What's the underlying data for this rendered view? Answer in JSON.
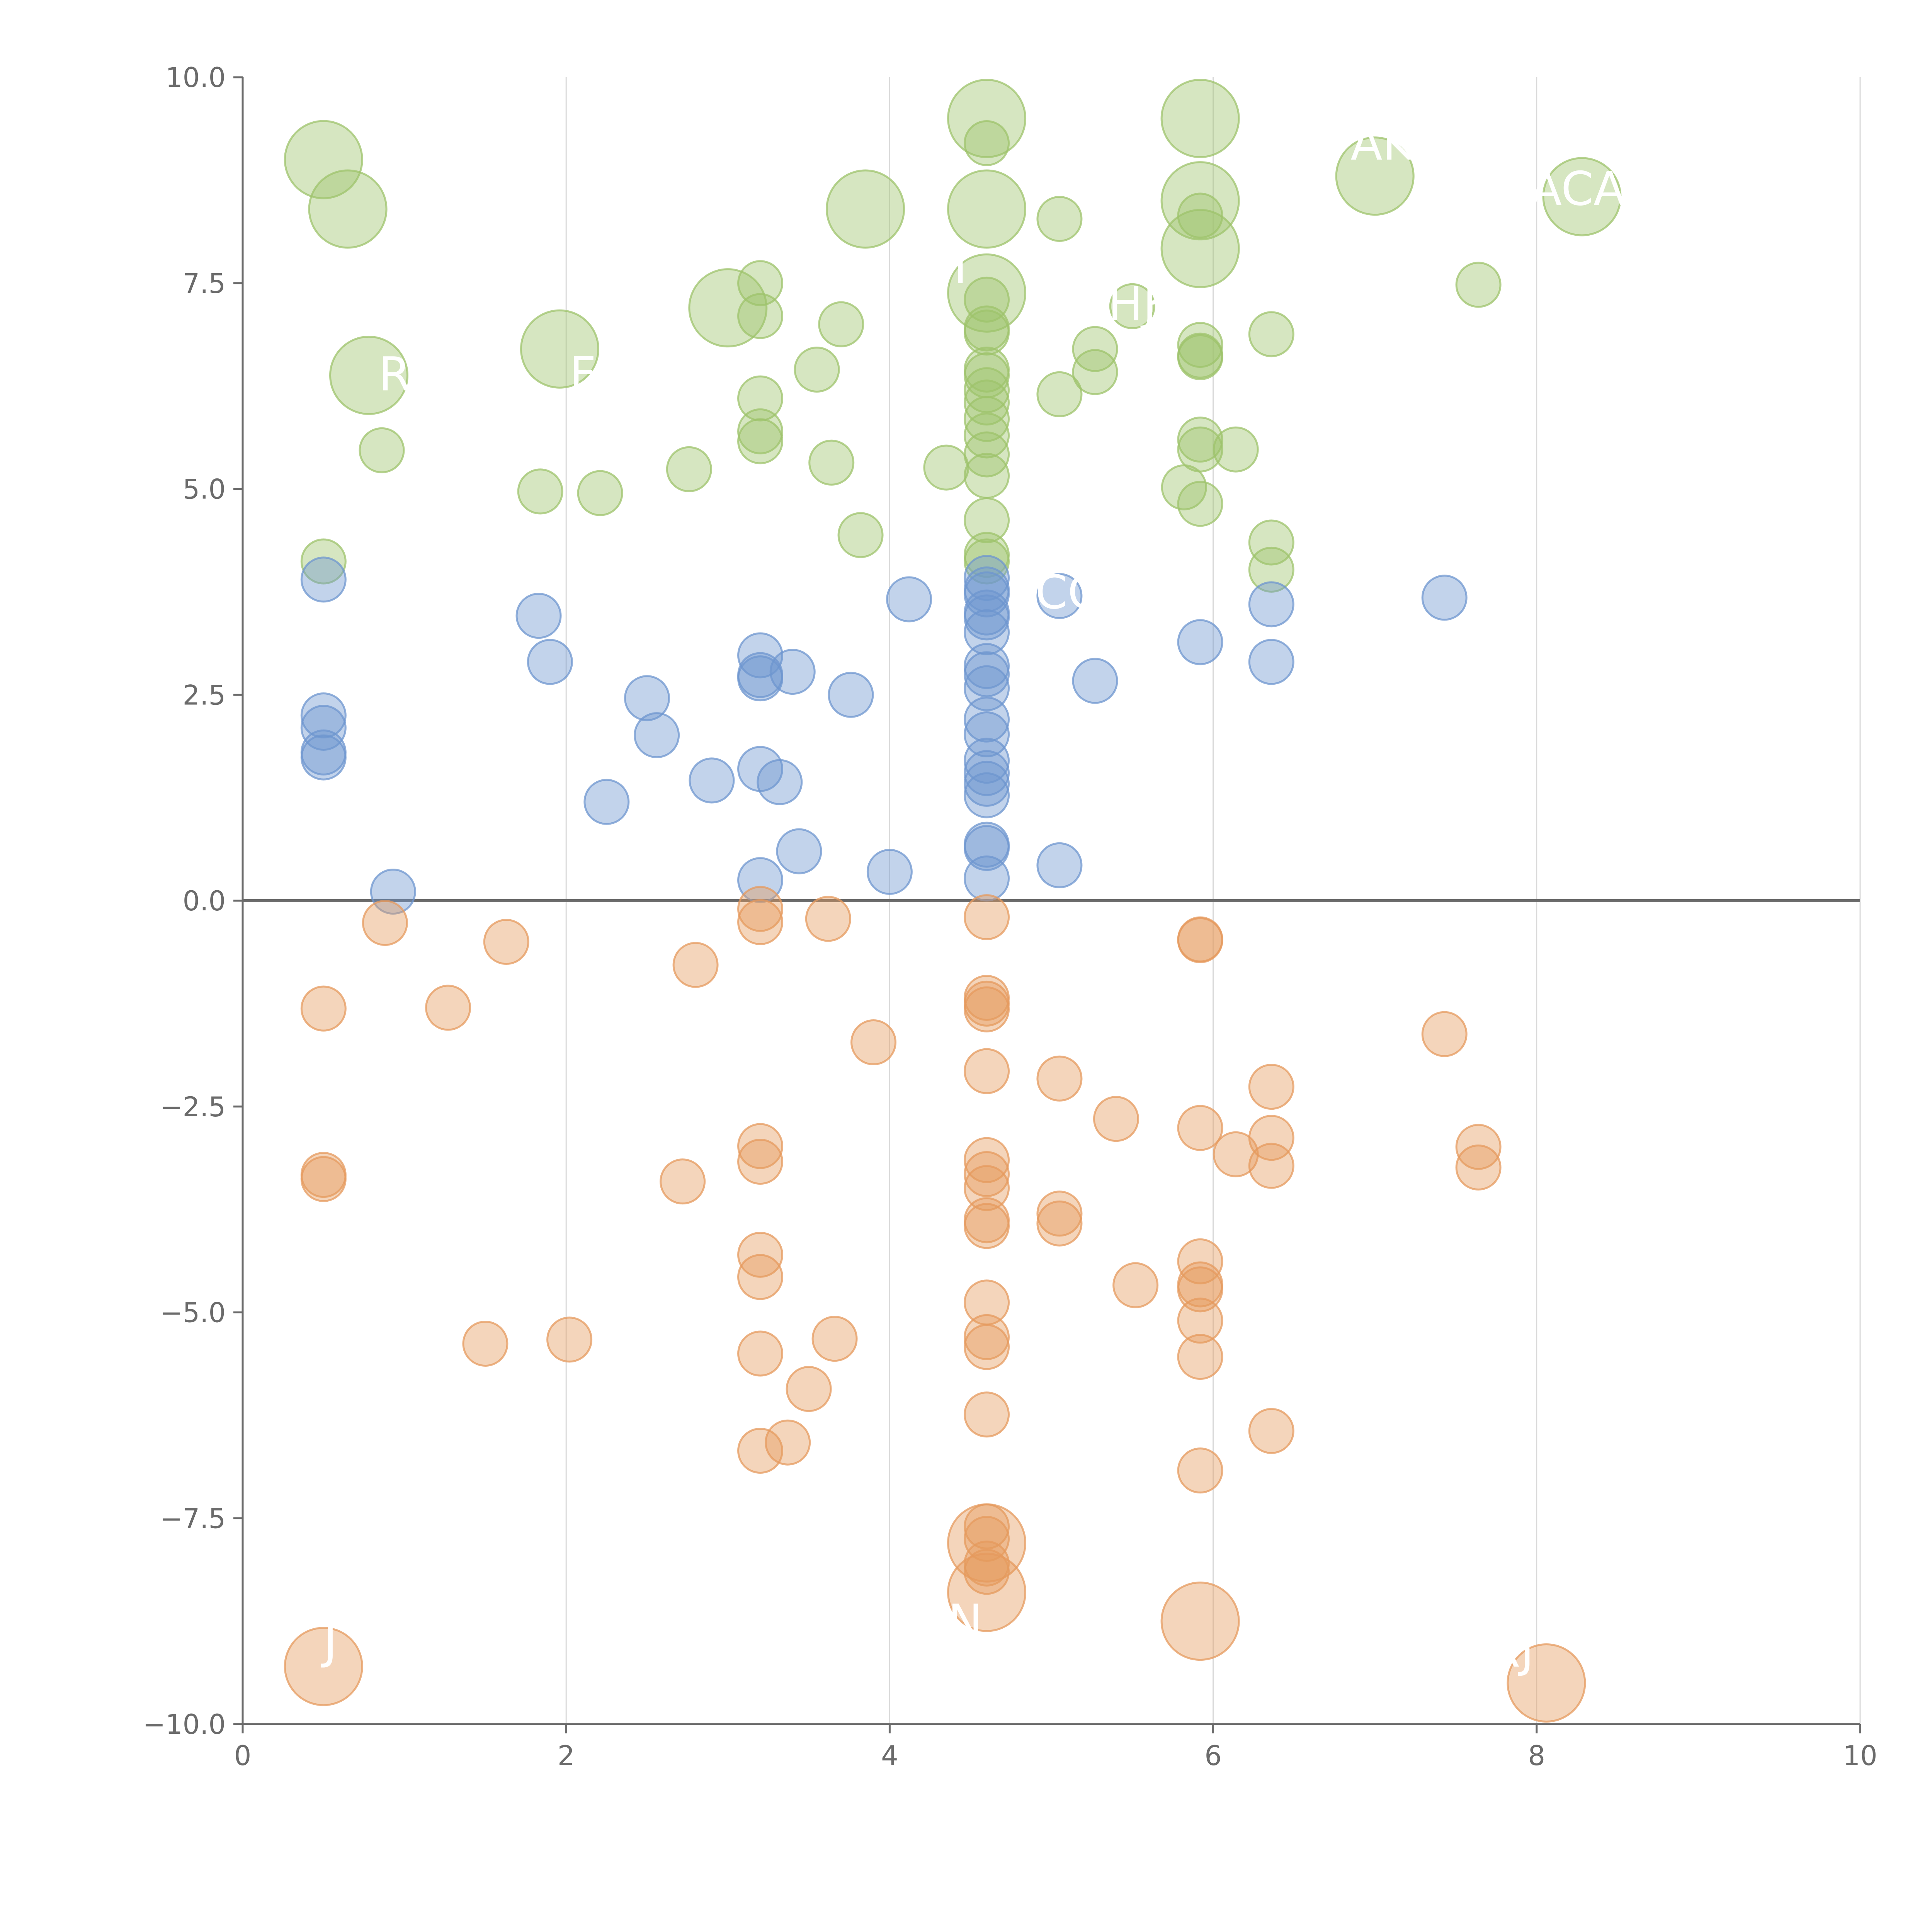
{
  "chart_data": {
    "type": "scatter",
    "subtype": "bubble",
    "title": "",
    "xlabel": "",
    "ylabel": "",
    "xlim": [
      0,
      10
    ],
    "ylim": [
      -10,
      10
    ],
    "x_ticks": [
      "0",
      "2",
      "4",
      "6",
      "8",
      "10"
    ],
    "y_ticks": [
      "−10.0",
      "−7.5",
      "−5.0",
      "−2.5",
      "0.0",
      "2.5",
      "5.0",
      "7.5",
      "10.0"
    ],
    "grid": "vertical",
    "zero_line": true,
    "colors": {
      "green": "#9dc36b",
      "blue": "#6e96cf",
      "orange": "#e59a5d",
      "axis": "#6b6b6b",
      "grid": "#d9d9d9",
      "label": "#ffffff"
    },
    "series": [
      {
        "name": "high",
        "color": "green",
        "points": [
          [
            0.5,
            9.0,
            3
          ],
          [
            0.65,
            8.4,
            3
          ],
          [
            3.85,
            8.4,
            3
          ],
          [
            4.6,
            9.5,
            3
          ],
          [
            4.6,
            8.4,
            3
          ],
          [
            5.92,
            9.5,
            3
          ],
          [
            5.92,
            8.5,
            3
          ],
          [
            5.92,
            7.92,
            3
          ],
          [
            7.0,
            8.8,
            3
          ],
          [
            8.28,
            8.55,
            3
          ],
          [
            4.6,
            7.38,
            3
          ],
          [
            3.0,
            7.2,
            3
          ],
          [
            1.96,
            6.7,
            3
          ],
          [
            0.78,
            6.38,
            3
          ],
          [
            4.6,
            9.2,
            1
          ],
          [
            5.05,
            8.28,
            1
          ],
          [
            5.92,
            8.32,
            1
          ],
          [
            3.2,
            7.5,
            1
          ],
          [
            3.2,
            7.1,
            1
          ],
          [
            3.7,
            7.0,
            1
          ],
          [
            4.6,
            7.3,
            1
          ],
          [
            4.6,
            6.95,
            1
          ],
          [
            4.6,
            6.9,
            1
          ],
          [
            5.5,
            7.22,
            1
          ],
          [
            7.64,
            7.48,
            1
          ],
          [
            6.36,
            6.88,
            1
          ],
          [
            5.92,
            6.75,
            1
          ],
          [
            5.92,
            6.62,
            1
          ],
          [
            5.92,
            6.6,
            1
          ],
          [
            5.27,
            6.7,
            1
          ],
          [
            5.27,
            6.42,
            1
          ],
          [
            3.55,
            6.45,
            1
          ],
          [
            4.6,
            6.45,
            1
          ],
          [
            4.6,
            6.38,
            1
          ],
          [
            4.6,
            6.2,
            1
          ],
          [
            4.6,
            6.05,
            1
          ],
          [
            5.05,
            6.15,
            1
          ],
          [
            3.2,
            6.1,
            1
          ],
          [
            4.6,
            5.85,
            1
          ],
          [
            3.2,
            5.7,
            1
          ],
          [
            3.2,
            5.58,
            1
          ],
          [
            4.6,
            5.65,
            1
          ],
          [
            4.6,
            5.42,
            1
          ],
          [
            5.92,
            5.6,
            1
          ],
          [
            5.92,
            5.48,
            1
          ],
          [
            6.14,
            5.48,
            1
          ],
          [
            0.86,
            5.47,
            1
          ],
          [
            3.64,
            5.32,
            1
          ],
          [
            2.76,
            5.24,
            1
          ],
          [
            4.35,
            5.26,
            1
          ],
          [
            4.6,
            5.16,
            1
          ],
          [
            1.84,
            4.97,
            1
          ],
          [
            2.21,
            4.95,
            1
          ],
          [
            5.82,
            5.02,
            1
          ],
          [
            5.92,
            4.82,
            1
          ],
          [
            4.6,
            4.62,
            1
          ],
          [
            3.82,
            4.44,
            1
          ],
          [
            6.36,
            4.35,
            1
          ],
          [
            4.6,
            4.2,
            1
          ],
          [
            4.6,
            4.12,
            1
          ],
          [
            6.36,
            4.02,
            1
          ],
          [
            0.5,
            4.12,
            1
          ]
        ]
      },
      {
        "name": "mid",
        "color": "blue",
        "points": [
          [
            0.5,
            3.9,
            1
          ],
          [
            1.83,
            3.46,
            1
          ],
          [
            1.9,
            2.9,
            1
          ],
          [
            4.12,
            3.66,
            1
          ],
          [
            4.6,
            3.92,
            1
          ],
          [
            4.6,
            3.78,
            1
          ],
          [
            4.6,
            3.72,
            1
          ],
          [
            4.6,
            3.5,
            1
          ],
          [
            4.6,
            3.44,
            1
          ],
          [
            4.6,
            3.26,
            1
          ],
          [
            5.05,
            3.7,
            1
          ],
          [
            7.43,
            3.68,
            1
          ],
          [
            6.36,
            3.6,
            1
          ],
          [
            5.92,
            3.14,
            1
          ],
          [
            6.36,
            2.9,
            1
          ],
          [
            3.2,
            2.98,
            1
          ],
          [
            3.2,
            2.74,
            1
          ],
          [
            3.2,
            2.7,
            1
          ],
          [
            3.4,
            2.78,
            1
          ],
          [
            3.76,
            2.5,
            1
          ],
          [
            4.6,
            2.85,
            1
          ],
          [
            4.6,
            2.75,
            1
          ],
          [
            4.6,
            2.58,
            1
          ],
          [
            5.27,
            2.67,
            1
          ],
          [
            0.5,
            2.25,
            1
          ],
          [
            0.5,
            2.1,
            1
          ],
          [
            0.5,
            1.8,
            1
          ],
          [
            0.5,
            1.74,
            1
          ],
          [
            2.5,
            2.46,
            1
          ],
          [
            2.56,
            2.01,
            1
          ],
          [
            4.6,
            2.2,
            1
          ],
          [
            4.6,
            2.02,
            1
          ],
          [
            4.6,
            1.7,
            1
          ],
          [
            4.6,
            1.55,
            1
          ],
          [
            4.6,
            1.42,
            1
          ],
          [
            4.6,
            1.28,
            1
          ],
          [
            3.2,
            1.6,
            1
          ],
          [
            3.32,
            1.44,
            1
          ],
          [
            2.9,
            1.46,
            1
          ],
          [
            2.25,
            1.2,
            1
          ],
          [
            3.44,
            0.6,
            1
          ],
          [
            4.0,
            0.35,
            1
          ],
          [
            4.6,
            0.68,
            1
          ],
          [
            4.6,
            0.64,
            1
          ],
          [
            4.6,
            0.27,
            1
          ],
          [
            5.05,
            0.43,
            1
          ],
          [
            3.2,
            0.25,
            1
          ],
          [
            0.93,
            0.11,
            1
          ]
        ]
      },
      {
        "name": "low",
        "color": "orange",
        "points": [
          [
            0.88,
            -0.27,
            1
          ],
          [
            1.63,
            -0.5,
            1
          ],
          [
            3.2,
            -0.1,
            1
          ],
          [
            3.2,
            -0.26,
            1
          ],
          [
            3.62,
            -0.22,
            1
          ],
          [
            2.8,
            -0.78,
            1
          ],
          [
            4.6,
            -0.2,
            1
          ],
          [
            5.92,
            -0.47,
            1
          ],
          [
            5.92,
            -0.48,
            1
          ],
          [
            0.5,
            -1.31,
            1
          ],
          [
            1.27,
            -1.3,
            1
          ],
          [
            4.6,
            -1.18,
            1
          ],
          [
            4.6,
            -1.25,
            1
          ],
          [
            4.6,
            -1.32,
            1
          ],
          [
            3.9,
            -1.72,
            1
          ],
          [
            7.43,
            -1.62,
            1
          ],
          [
            4.6,
            -2.07,
            1
          ],
          [
            5.05,
            -2.16,
            1
          ],
          [
            6.36,
            -2.26,
            1
          ],
          [
            5.4,
            -2.65,
            1
          ],
          [
            5.92,
            -2.76,
            1
          ],
          [
            6.36,
            -2.88,
            1
          ],
          [
            6.36,
            -3.22,
            1
          ],
          [
            6.14,
            -3.08,
            1
          ],
          [
            7.64,
            -2.99,
            1
          ],
          [
            7.64,
            -3.24,
            1
          ],
          [
            3.2,
            -2.98,
            1
          ],
          [
            3.2,
            -3.17,
            1
          ],
          [
            4.6,
            -3.15,
            1
          ],
          [
            4.6,
            -3.32,
            1
          ],
          [
            4.6,
            -3.49,
            1
          ],
          [
            0.5,
            -3.33,
            1
          ],
          [
            0.5,
            -3.38,
            1
          ],
          [
            2.72,
            -3.41,
            1
          ],
          [
            5.05,
            -3.8,
            1
          ],
          [
            5.05,
            -3.92,
            1
          ],
          [
            4.6,
            -3.88,
            1
          ],
          [
            4.6,
            -3.95,
            1
          ],
          [
            3.2,
            -4.3,
            1
          ],
          [
            3.2,
            -4.57,
            1
          ],
          [
            5.92,
            -4.38,
            1
          ],
          [
            5.92,
            -4.66,
            1
          ],
          [
            5.92,
            -4.72,
            1
          ],
          [
            5.52,
            -4.67,
            1
          ],
          [
            4.6,
            -4.88,
            1
          ],
          [
            5.92,
            -5.1,
            1
          ],
          [
            5.92,
            -5.54,
            1
          ],
          [
            4.6,
            -5.3,
            1
          ],
          [
            4.6,
            -5.42,
            1
          ],
          [
            3.66,
            -5.32,
            1
          ],
          [
            1.5,
            -5.38,
            1
          ],
          [
            2.02,
            -5.33,
            1
          ],
          [
            3.2,
            -5.5,
            1
          ],
          [
            3.5,
            -5.93,
            1
          ],
          [
            4.6,
            -6.24,
            1
          ],
          [
            6.36,
            -6.44,
            1
          ],
          [
            3.2,
            -6.68,
            1
          ],
          [
            3.37,
            -6.58,
            1
          ],
          [
            5.92,
            -6.92,
            1
          ],
          [
            4.6,
            -7.6,
            1
          ],
          [
            4.6,
            -7.75,
            1
          ],
          [
            4.6,
            -8.05,
            1
          ],
          [
            4.6,
            -8.15,
            1
          ],
          [
            4.6,
            -7.8,
            3
          ],
          [
            4.6,
            -8.4,
            3
          ],
          [
            5.92,
            -8.75,
            3
          ],
          [
            0.5,
            -9.3,
            3
          ],
          [
            8.06,
            -9.5,
            3
          ]
        ]
      }
    ],
    "annotations": [
      {
        "text": "AK",
        "x": 6.85,
        "y": 9.0
      },
      {
        "text": "ACA",
        "x": 7.96,
        "y": 8.45
      },
      {
        "text": "R",
        "x": 0.84,
        "y": 6.2
      },
      {
        "text": "F",
        "x": 2.02,
        "y": 6.2
      },
      {
        "text": "T",
        "x": 4.35,
        "y": 7.5
      },
      {
        "text": "CC",
        "x": 4.9,
        "y": 3.55
      },
      {
        "text": "HJ",
        "x": 5.35,
        "y": 7.05
      },
      {
        "text": "J",
        "x": 5.62,
        "y": 7.35
      },
      {
        "text": "P",
        "x": 5.76,
        "y": -8.3
      },
      {
        "text": "N",
        "x": 4.36,
        "y": -8.95
      },
      {
        "text": "J",
        "x": 0.5,
        "y": -9.2
      },
      {
        "text": "RJ",
        "x": 7.7,
        "y": -9.3
      }
    ]
  }
}
